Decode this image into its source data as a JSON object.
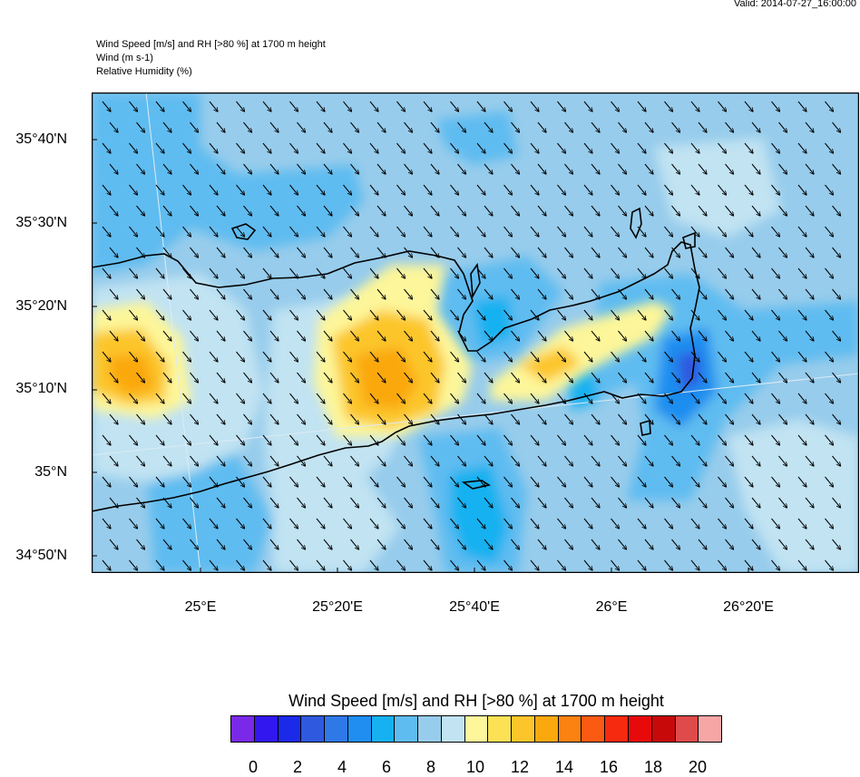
{
  "valid_time": "Valid: 2014-07-27_16:00:00",
  "titles": {
    "line1": "Wind Speed [m/s] and RH [>80 %] at 1700 m height",
    "line2": "Wind   (m s-1)",
    "line3": "Relative Humidity   (%)"
  },
  "axes": {
    "lat_labels": [
      "35°40'N",
      "35°30'N",
      "35°20'N",
      "35°10'N",
      "35°N",
      "34°50'N"
    ],
    "lon_labels": [
      "25°E",
      "25°20'E",
      "25°40'E",
      "26°E",
      "26°20'E"
    ]
  },
  "legend": {
    "title": "Wind Speed [m/s] and RH [>80 %] at 1700 m height",
    "tick_labels": [
      "0",
      "2",
      "4",
      "6",
      "8",
      "10",
      "12",
      "14",
      "16",
      "18",
      "20"
    ],
    "colors": [
      "#7a29e8",
      "#3218ee",
      "#1b2ae8",
      "#2f59df",
      "#2f78e8",
      "#1f8ef0",
      "#16b1f0",
      "#5fbcf0",
      "#97ccec",
      "#c1e3f2",
      "#fdf69a",
      "#fce154",
      "#fcc62a",
      "#fba80e",
      "#fb8210",
      "#fa5a12",
      "#f62a0e",
      "#e8090a",
      "#c70909",
      "#df4a4a",
      "#f7a6a6"
    ]
  },
  "map_icons": {
    "wind_barbs": "wind-arrow-icon"
  }
}
